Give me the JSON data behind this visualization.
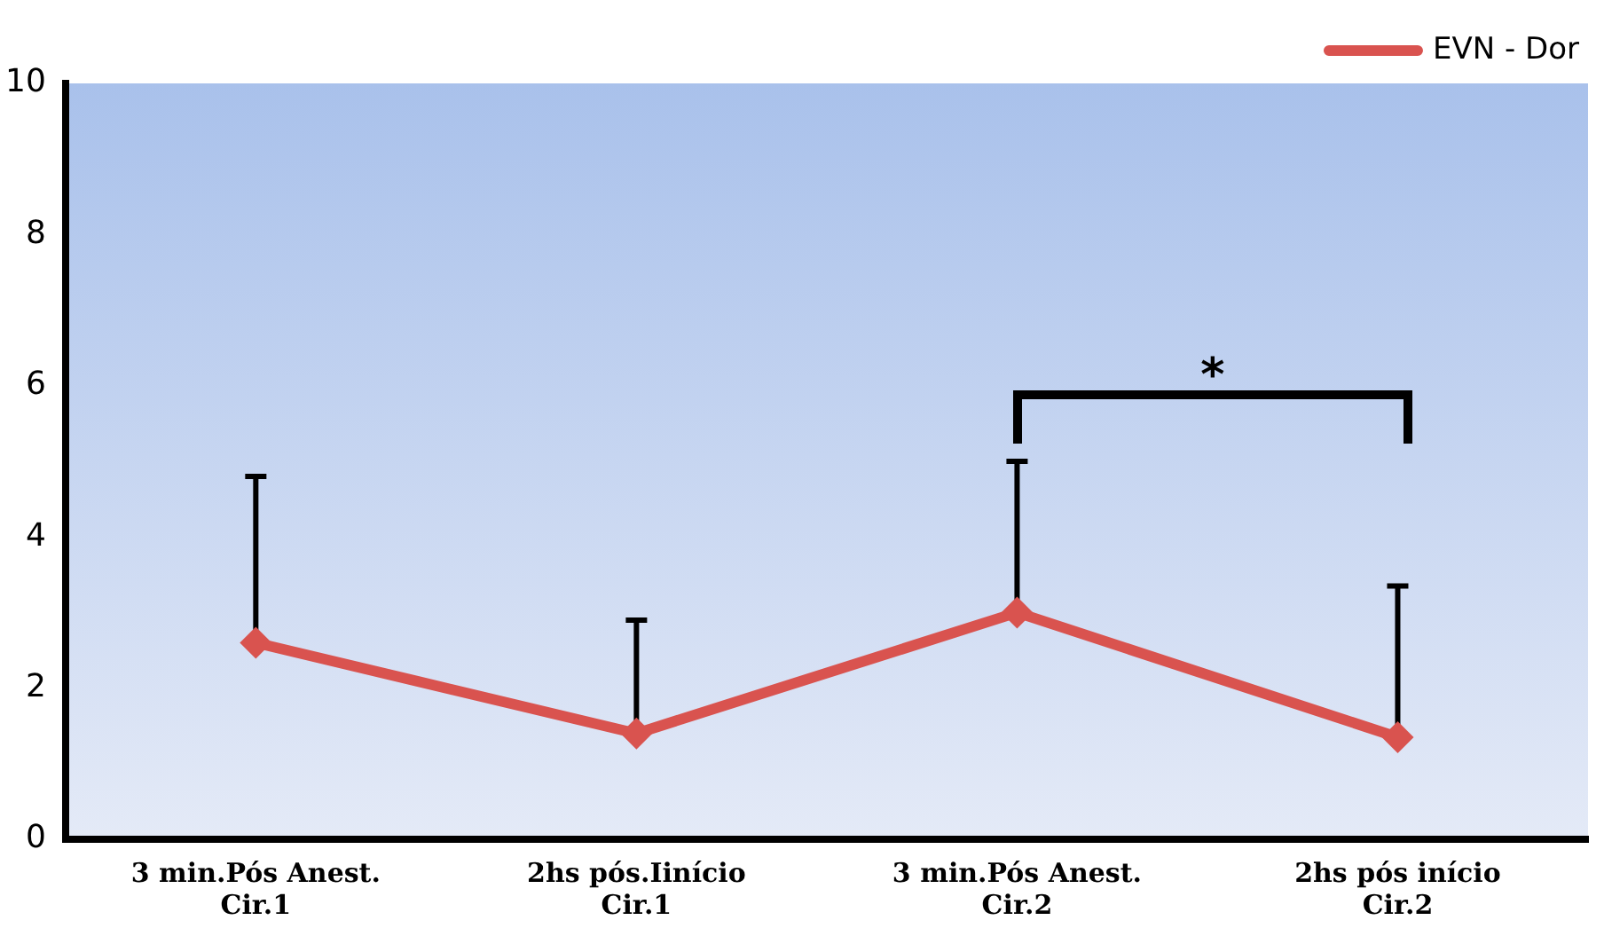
{
  "chart_data": {
    "type": "line",
    "categories": [
      "3 min.Pós Anest. Cir.1",
      "2hs pós.Iinício Cir.1",
      "3 min.Pós Anest. Cir.2",
      "2hs pós início Cir.2"
    ],
    "series": [
      {
        "name": "EVN - Dor",
        "color": "#d9534f",
        "values": [
          2.6,
          1.4,
          3.0,
          1.35
        ],
        "errors": [
          [
            2.6,
            4.8
          ],
          [
            1.4,
            2.9
          ],
          [
            3.0,
            5.0
          ],
          [
            1.35,
            3.35
          ]
        ]
      }
    ],
    "ylim": [
      0,
      10
    ],
    "yticks": [
      0,
      2,
      4,
      6,
      8,
      10
    ],
    "grid": false,
    "legend": "top right",
    "marker": "diamond",
    "line_style": "solid",
    "annotations": [
      "*"
    ]
  }
}
